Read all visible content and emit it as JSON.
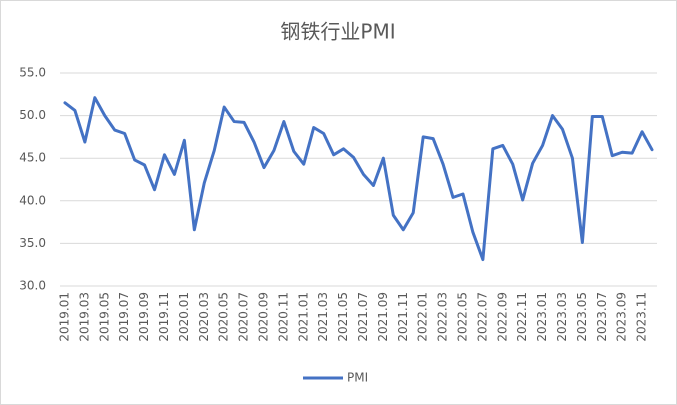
{
  "chart_data": {
    "type": "line",
    "title": "钢铁行业PMI",
    "categories": [
      "2019.01",
      null,
      "2019.03",
      null,
      "2019.05",
      null,
      "2019.07",
      null,
      "2019.09",
      null,
      "2019.11",
      null,
      "2020.01",
      null,
      "2020.03",
      null,
      "2020.05",
      null,
      "2020.07",
      null,
      "2020.09",
      null,
      "2020.11",
      null,
      "2021.01",
      null,
      "2021.03",
      null,
      "2021.05",
      null,
      "2021.07",
      null,
      "2021.09",
      null,
      "2021.11",
      null,
      "2022.01",
      null,
      "2022.03",
      null,
      "2022.05",
      null,
      "2022.07",
      null,
      "2022.09",
      null,
      "2022.11",
      null,
      "2023.01",
      null,
      "2023.03",
      null,
      "2023.05",
      null,
      "2023.07",
      null,
      "2023.09",
      null,
      "2023.11",
      null
    ],
    "series": [
      {
        "name": "PMI",
        "color": "#4472c4",
        "values": [
          51.5,
          50.6,
          46.9,
          52.1,
          50.0,
          48.3,
          47.9,
          44.8,
          44.2,
          41.3,
          45.4,
          43.1,
          47.1,
          36.6,
          42.1,
          45.9,
          51.0,
          49.3,
          49.2,
          46.9,
          43.9,
          45.9,
          49.3,
          45.8,
          44.3,
          48.6,
          47.9,
          45.4,
          46.1,
          45.1,
          43.1,
          41.8,
          45.0,
          38.3,
          36.6,
          38.6,
          47.5,
          47.3,
          44.3,
          40.4,
          40.8,
          36.3,
          33.1,
          46.1,
          46.5,
          44.3,
          40.1,
          44.4,
          46.5,
          50.0,
          48.4,
          45.0,
          35.1,
          49.9,
          49.9,
          45.3,
          45.7,
          45.6,
          48.1,
          46.0
        ]
      }
    ],
    "ylim": [
      30,
      55
    ],
    "yticks": [
      {
        "value": 30,
        "label": "30.0"
      },
      {
        "value": 35,
        "label": "35.0"
      },
      {
        "value": 40,
        "label": "40.0"
      },
      {
        "value": 45,
        "label": "45.0"
      },
      {
        "value": 50,
        "label": "50.0"
      },
      {
        "value": 55,
        "label": "55.0"
      }
    ],
    "grid": true,
    "legend": "bottom"
  }
}
